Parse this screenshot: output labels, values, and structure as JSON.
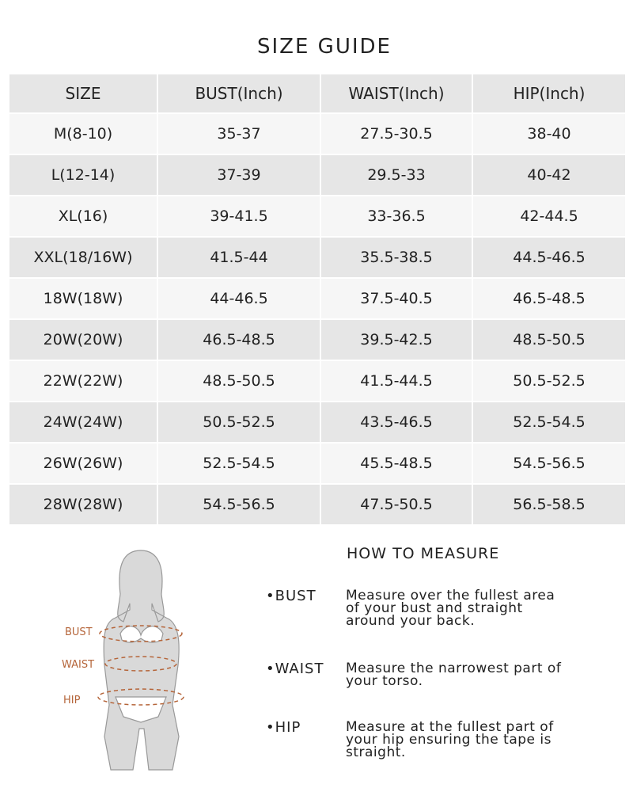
{
  "title": "SIZE GUIDE",
  "table": {
    "header": [
      "SIZE",
      "BUST(Inch)",
      "WAIST(Inch)",
      "HIP(Inch)"
    ],
    "rows": [
      [
        "M(8-10)",
        "35-37",
        "27.5-30.5",
        "38-40"
      ],
      [
        "L(12-14)",
        "37-39",
        "29.5-33",
        "40-42"
      ],
      [
        "XL(16)",
        "39-41.5",
        "33-36.5",
        "42-44.5"
      ],
      [
        "XXL(18/16W)",
        "41.5-44",
        "35.5-38.5",
        "44.5-46.5"
      ],
      [
        "18W(18W)",
        "44-46.5",
        "37.5-40.5",
        "46.5-48.5"
      ],
      [
        "20W(20W)",
        "46.5-48.5",
        "39.5-42.5",
        "48.5-50.5"
      ],
      [
        "22W(22W)",
        "48.5-50.5",
        "41.5-44.5",
        "50.5-52.5"
      ],
      [
        "24W(24W)",
        "50.5-52.5",
        "43.5-46.5",
        "52.5-54.5"
      ],
      [
        "26W(26W)",
        "52.5-54.5",
        "45.5-48.5",
        "54.5-56.5"
      ],
      [
        "28W(28W)",
        "54.5-56.5",
        "47.5-50.5",
        "56.5-58.5"
      ]
    ]
  },
  "figure": {
    "labels": [
      "BUST",
      "WAIST",
      "HIP"
    ]
  },
  "measure": {
    "title": "HOW TO MEASURE",
    "items": [
      {
        "label": "BUST",
        "text": "Measure over the fullest area of your bust and straight around your back."
      },
      {
        "label": "WAIST",
        "text": "Measure the narrowest part of your torso."
      },
      {
        "label": "HIP",
        "text": "Measure at the fullest part of your hip ensuring the tape is straight."
      }
    ]
  }
}
